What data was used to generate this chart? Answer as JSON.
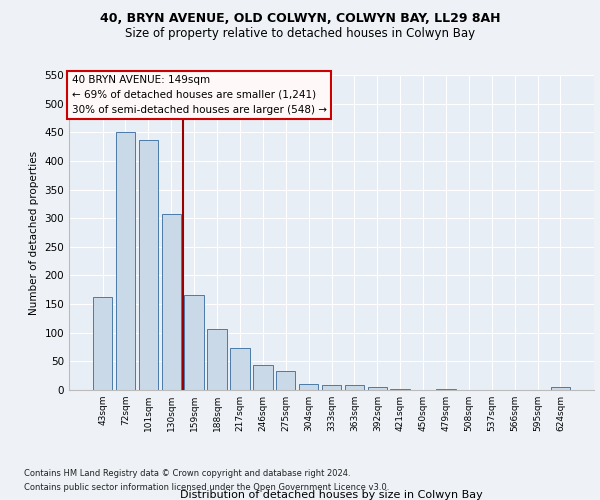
{
  "title1": "40, BRYN AVENUE, OLD COLWYN, COLWYN BAY, LL29 8AH",
  "title2": "Size of property relative to detached houses in Colwyn Bay",
  "xlabel": "Distribution of detached houses by size in Colwyn Bay",
  "ylabel": "Number of detached properties",
  "categories": [
    "43sqm",
    "72sqm",
    "101sqm",
    "130sqm",
    "159sqm",
    "188sqm",
    "217sqm",
    "246sqm",
    "275sqm",
    "304sqm",
    "333sqm",
    "363sqm",
    "392sqm",
    "421sqm",
    "450sqm",
    "479sqm",
    "508sqm",
    "537sqm",
    "566sqm",
    "595sqm",
    "624sqm"
  ],
  "values": [
    163,
    450,
    436,
    307,
    166,
    106,
    74,
    44,
    33,
    10,
    8,
    8,
    5,
    1,
    0,
    1,
    0,
    0,
    0,
    0,
    5
  ],
  "bar_color": "#c9d9e8",
  "bar_edge_color": "#4a7aa8",
  "red_line_index": 4,
  "annotation_line1": "40 BRYN AVENUE: 149sqm",
  "annotation_line2": "← 69% of detached houses are smaller (1,241)",
  "annotation_line3": "30% of semi-detached houses are larger (548) →",
  "footer1": "Contains HM Land Registry data © Crown copyright and database right 2024.",
  "footer2": "Contains public sector information licensed under the Open Government Licence v3.0.",
  "ylim": [
    0,
    550
  ],
  "yticks": [
    0,
    50,
    100,
    150,
    200,
    250,
    300,
    350,
    400,
    450,
    500,
    550
  ],
  "bg_color": "#eef2f7",
  "plot_bg_color": "#e8eef5",
  "grid_color": "#ffffff",
  "annotation_box_fill": "#fff8f8",
  "annotation_box_edge": "#cc0000",
  "title_fontsize": 9,
  "subtitle_fontsize": 8.5
}
